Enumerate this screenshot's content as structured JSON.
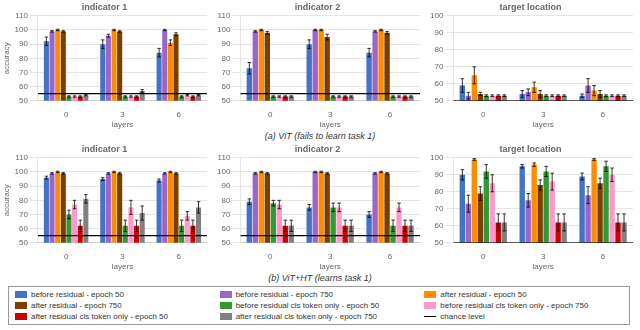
{
  "chart_data": [
    {
      "type": "bar",
      "title": "indicator 1",
      "caption": "(a) ViT (fails to learn task 1)",
      "xlabel": "layers",
      "ylabel": "accuracy",
      "categories": [
        "0",
        "3",
        "6"
      ],
      "series": [
        {
          "name": "before residual - epoch 50",
          "color": "#4472C4",
          "values": [
            92,
            90,
            84
          ],
          "errors": [
            3,
            3,
            3
          ]
        },
        {
          "name": "before residual - epoch 750",
          "color": "#9966CC",
          "values": [
            99,
            96,
            100
          ],
          "errors": [
            0.5,
            1,
            0.5
          ]
        },
        {
          "name": "after residual - epoch 50",
          "color": "#FF8C00",
          "values": [
            100,
            100,
            91
          ],
          "errors": [
            0.5,
            0.5,
            2
          ]
        },
        {
          "name": "after residual - epoch 750",
          "color": "#7B3F00",
          "values": [
            99,
            99,
            97
          ],
          "errors": [
            0.5,
            0.5,
            1
          ]
        },
        {
          "name": "before residual cls token only - epoch 50",
          "color": "#339933",
          "values": [
            53,
            53,
            53
          ],
          "errors": [
            0.5,
            0.5,
            0.5
          ]
        },
        {
          "name": "before residual cls token only - epoch 750",
          "color": "#FF99CC",
          "values": [
            53,
            53,
            54
          ],
          "errors": [
            0.5,
            0.5,
            0.5
          ]
        },
        {
          "name": "after residual cls token only - epoch 50",
          "color": "#CC0000",
          "values": [
            53,
            53,
            53
          ],
          "errors": [
            0.5,
            0.5,
            0.5
          ]
        },
        {
          "name": "after residual cls token only - epoch 750",
          "color": "#808080",
          "values": [
            54,
            57,
            54
          ],
          "errors": [
            0.5,
            1,
            0.5
          ]
        }
      ],
      "chance_level": {
        "name": "chance level",
        "value": 55
      },
      "ylim": [
        50,
        110
      ],
      "yticks": [
        50,
        60,
        70,
        80,
        90,
        100,
        110
      ],
      "grid": true,
      "legend": "bottom"
    },
    {
      "type": "bar",
      "title": "indicator 2",
      "xlabel": "layers",
      "categories": [
        "0",
        "3",
        "6"
      ],
      "series": [
        {
          "name": "before residual - epoch 50",
          "color": "#4472C4",
          "values": [
            73,
            90,
            84
          ],
          "errors": [
            4,
            3,
            3
          ]
        },
        {
          "name": "before residual - epoch 750",
          "color": "#9966CC",
          "values": [
            99,
            100,
            99
          ],
          "errors": [
            0.5,
            0.5,
            0.5
          ]
        },
        {
          "name": "after residual - epoch 50",
          "color": "#FF8C00",
          "values": [
            100,
            100,
            100
          ],
          "errors": [
            0.5,
            0.5,
            0.5
          ]
        },
        {
          "name": "after residual - epoch 750",
          "color": "#7B3F00",
          "values": [
            98,
            95,
            98
          ],
          "errors": [
            1,
            2,
            1
          ]
        },
        {
          "name": "before residual cls token only - epoch 50",
          "color": "#339933",
          "values": [
            53,
            53,
            53
          ],
          "errors": [
            0.5,
            0.5,
            0.5
          ]
        },
        {
          "name": "before residual cls token only - epoch 750",
          "color": "#FF99CC",
          "values": [
            53,
            53,
            53
          ],
          "errors": [
            0.5,
            0.5,
            0.5
          ]
        },
        {
          "name": "after residual cls token only - epoch 50",
          "color": "#CC0000",
          "values": [
            53,
            53,
            53
          ],
          "errors": [
            0.5,
            0.5,
            0.5
          ]
        },
        {
          "name": "after residual cls token only - epoch 750",
          "color": "#808080",
          "values": [
            53,
            53,
            53
          ],
          "errors": [
            0.5,
            0.5,
            0.5
          ]
        }
      ],
      "chance_level": {
        "name": "chance level",
        "value": 55
      },
      "ylim": [
        50,
        110
      ],
      "yticks": [
        50,
        60,
        70,
        80,
        90,
        100,
        110
      ],
      "grid": true,
      "legend": "bottom"
    },
    {
      "type": "bar",
      "title": "target location",
      "xlabel": "layers",
      "categories": [
        "0",
        "3",
        "6"
      ],
      "series": [
        {
          "name": "before residual - epoch 50",
          "color": "#4472C4",
          "values": [
            59,
            54,
            53
          ],
          "errors": [
            4,
            2,
            1
          ]
        },
        {
          "name": "before residual - epoch 750",
          "color": "#9966CC",
          "values": [
            53,
            55,
            59
          ],
          "errors": [
            2,
            2,
            4
          ]
        },
        {
          "name": "after residual - epoch 50",
          "color": "#FF8C00",
          "values": [
            65,
            58,
            56
          ],
          "errors": [
            5,
            3,
            3
          ]
        },
        {
          "name": "after residual - epoch 750",
          "color": "#7B3F00",
          "values": [
            54,
            54,
            54
          ],
          "errors": [
            1,
            2,
            2
          ]
        },
        {
          "name": "before residual cls token only - epoch 50",
          "color": "#339933",
          "values": [
            53,
            53,
            53
          ],
          "errors": [
            0.5,
            0.5,
            0.5
          ]
        },
        {
          "name": "before residual cls token only - epoch 750",
          "color": "#FF99CC",
          "values": [
            53,
            53,
            53
          ],
          "errors": [
            0.5,
            0.5,
            0.5
          ]
        },
        {
          "name": "after residual cls token only - epoch 50",
          "color": "#CC0000",
          "values": [
            53,
            53,
            53
          ],
          "errors": [
            0.5,
            0.5,
            0.5
          ]
        },
        {
          "name": "after residual cls token only - epoch 750",
          "color": "#808080",
          "values": [
            53,
            53,
            53
          ],
          "errors": [
            0.5,
            0.5,
            0.5
          ]
        }
      ],
      "chance_level": {
        "name": "chance level",
        "value": 50
      },
      "ylim": [
        50,
        100
      ],
      "yticks": [
        50,
        60,
        70,
        80,
        90,
        100
      ],
      "grid": true,
      "legend": "bottom"
    },
    {
      "type": "bar",
      "title": "indicator 1",
      "caption": "(b) ViT+HT (learns task 1)",
      "xlabel": "layers",
      "ylabel": "accuracy",
      "categories": [
        "0",
        "3",
        "6"
      ],
      "series": [
        {
          "name": "before residual - epoch 50",
          "color": "#4472C4",
          "values": [
            96,
            95,
            94
          ],
          "errors": [
            1,
            1,
            1
          ]
        },
        {
          "name": "before residual - epoch 750",
          "color": "#9966CC",
          "values": [
            99,
            99,
            99
          ],
          "errors": [
            0.5,
            0.5,
            0.5
          ]
        },
        {
          "name": "after residual - epoch 50",
          "color": "#FF8C00",
          "values": [
            100,
            100,
            100
          ],
          "errors": [
            0.5,
            0.5,
            0.5
          ]
        },
        {
          "name": "after residual - epoch 750",
          "color": "#7B3F00",
          "values": [
            99,
            99,
            99
          ],
          "errors": [
            0.5,
            0.5,
            0.5
          ]
        },
        {
          "name": "before residual cls token only - epoch 50",
          "color": "#339933",
          "values": [
            70,
            62,
            62
          ],
          "errors": [
            3,
            4,
            4
          ]
        },
        {
          "name": "before residual cls token only - epoch 750",
          "color": "#FF99CC",
          "values": [
            77,
            75,
            69
          ],
          "errors": [
            3,
            5,
            3
          ]
        },
        {
          "name": "after residual cls token only - epoch 50",
          "color": "#CC0000",
          "values": [
            62,
            62,
            62
          ],
          "errors": [
            4,
            4,
            4
          ]
        },
        {
          "name": "after residual cls token only - epoch 750",
          "color": "#808080",
          "values": [
            81,
            71,
            75
          ],
          "errors": [
            3,
            5,
            4
          ]
        }
      ],
      "chance_level": {
        "name": "chance level",
        "value": 55
      },
      "ylim": [
        50,
        110
      ],
      "yticks": [
        50,
        60,
        70,
        80,
        90,
        100,
        110
      ],
      "grid": true,
      "legend": "bottom"
    },
    {
      "type": "bar",
      "title": "indicator 2",
      "xlabel": "layers",
      "categories": [
        "0",
        "3",
        "6"
      ],
      "series": [
        {
          "name": "before residual - epoch 50",
          "color": "#4472C4",
          "values": [
            79,
            75,
            70
          ],
          "errors": [
            2,
            2,
            2
          ]
        },
        {
          "name": "before residual - epoch 750",
          "color": "#9966CC",
          "values": [
            99,
            100,
            99
          ],
          "errors": [
            0.5,
            0.5,
            0.5
          ]
        },
        {
          "name": "after residual - epoch 50",
          "color": "#FF8C00",
          "values": [
            100,
            100,
            100
          ],
          "errors": [
            0.5,
            0.5,
            0.5
          ]
        },
        {
          "name": "after residual - epoch 750",
          "color": "#7B3F00",
          "values": [
            99,
            99,
            99
          ],
          "errors": [
            0.5,
            0.5,
            0.5
          ]
        },
        {
          "name": "before residual cls token only - epoch 50",
          "color": "#339933",
          "values": [
            78,
            75,
            62
          ],
          "errors": [
            2,
            3,
            4
          ]
        },
        {
          "name": "before residual cls token only - epoch 750",
          "color": "#FF99CC",
          "values": [
            77,
            75,
            75
          ],
          "errors": [
            3,
            3,
            3
          ]
        },
        {
          "name": "after residual cls token only - epoch 50",
          "color": "#CC0000",
          "values": [
            62,
            62,
            62
          ],
          "errors": [
            4,
            4,
            4
          ]
        },
        {
          "name": "after residual cls token only - epoch 750",
          "color": "#808080",
          "values": [
            62,
            62,
            62
          ],
          "errors": [
            4,
            4,
            4
          ]
        }
      ],
      "chance_level": {
        "name": "chance level",
        "value": 55
      },
      "ylim": [
        50,
        110
      ],
      "yticks": [
        50,
        60,
        70,
        80,
        90,
        100,
        110
      ],
      "grid": true,
      "legend": "bottom"
    },
    {
      "type": "bar",
      "title": "target location",
      "xlabel": "layers",
      "categories": [
        "0",
        "3",
        "6"
      ],
      "series": [
        {
          "name": "before residual - epoch 50",
          "color": "#4472C4",
          "values": [
            90,
            95,
            89
          ],
          "errors": [
            3,
            1,
            2
          ]
        },
        {
          "name": "before residual - epoch 750",
          "color": "#9966CC",
          "values": [
            73,
            75,
            78
          ],
          "errors": [
            5,
            4,
            5
          ]
        },
        {
          "name": "after residual - epoch 50",
          "color": "#FF8C00",
          "values": [
            99,
            96,
            99
          ],
          "errors": [
            0.5,
            1,
            0.5
          ]
        },
        {
          "name": "after residual - epoch 750",
          "color": "#7B3F00",
          "values": [
            79,
            84,
            85
          ],
          "errors": [
            4,
            3,
            3
          ]
        },
        {
          "name": "before residual cls token only - epoch 50",
          "color": "#339933",
          "values": [
            92,
            92,
            95
          ],
          "errors": [
            4,
            3,
            3
          ]
        },
        {
          "name": "before residual cls token only - epoch 750",
          "color": "#FF99CC",
          "values": [
            85,
            86,
            90
          ],
          "errors": [
            5,
            5,
            4
          ]
        },
        {
          "name": "after residual cls token only - epoch 50",
          "color": "#CC0000",
          "values": [
            62,
            62,
            62
          ],
          "errors": [
            5,
            5,
            5
          ]
        },
        {
          "name": "after residual cls token only - epoch 750",
          "color": "#808080",
          "values": [
            62,
            62,
            62
          ],
          "errors": [
            5,
            5,
            5
          ]
        }
      ],
      "chance_level": {
        "name": "chance level",
        "value": 50
      },
      "ylim": [
        50,
        100
      ],
      "yticks": [
        50,
        60,
        70,
        80,
        90,
        100
      ],
      "grid": true,
      "legend": "bottom"
    }
  ]
}
